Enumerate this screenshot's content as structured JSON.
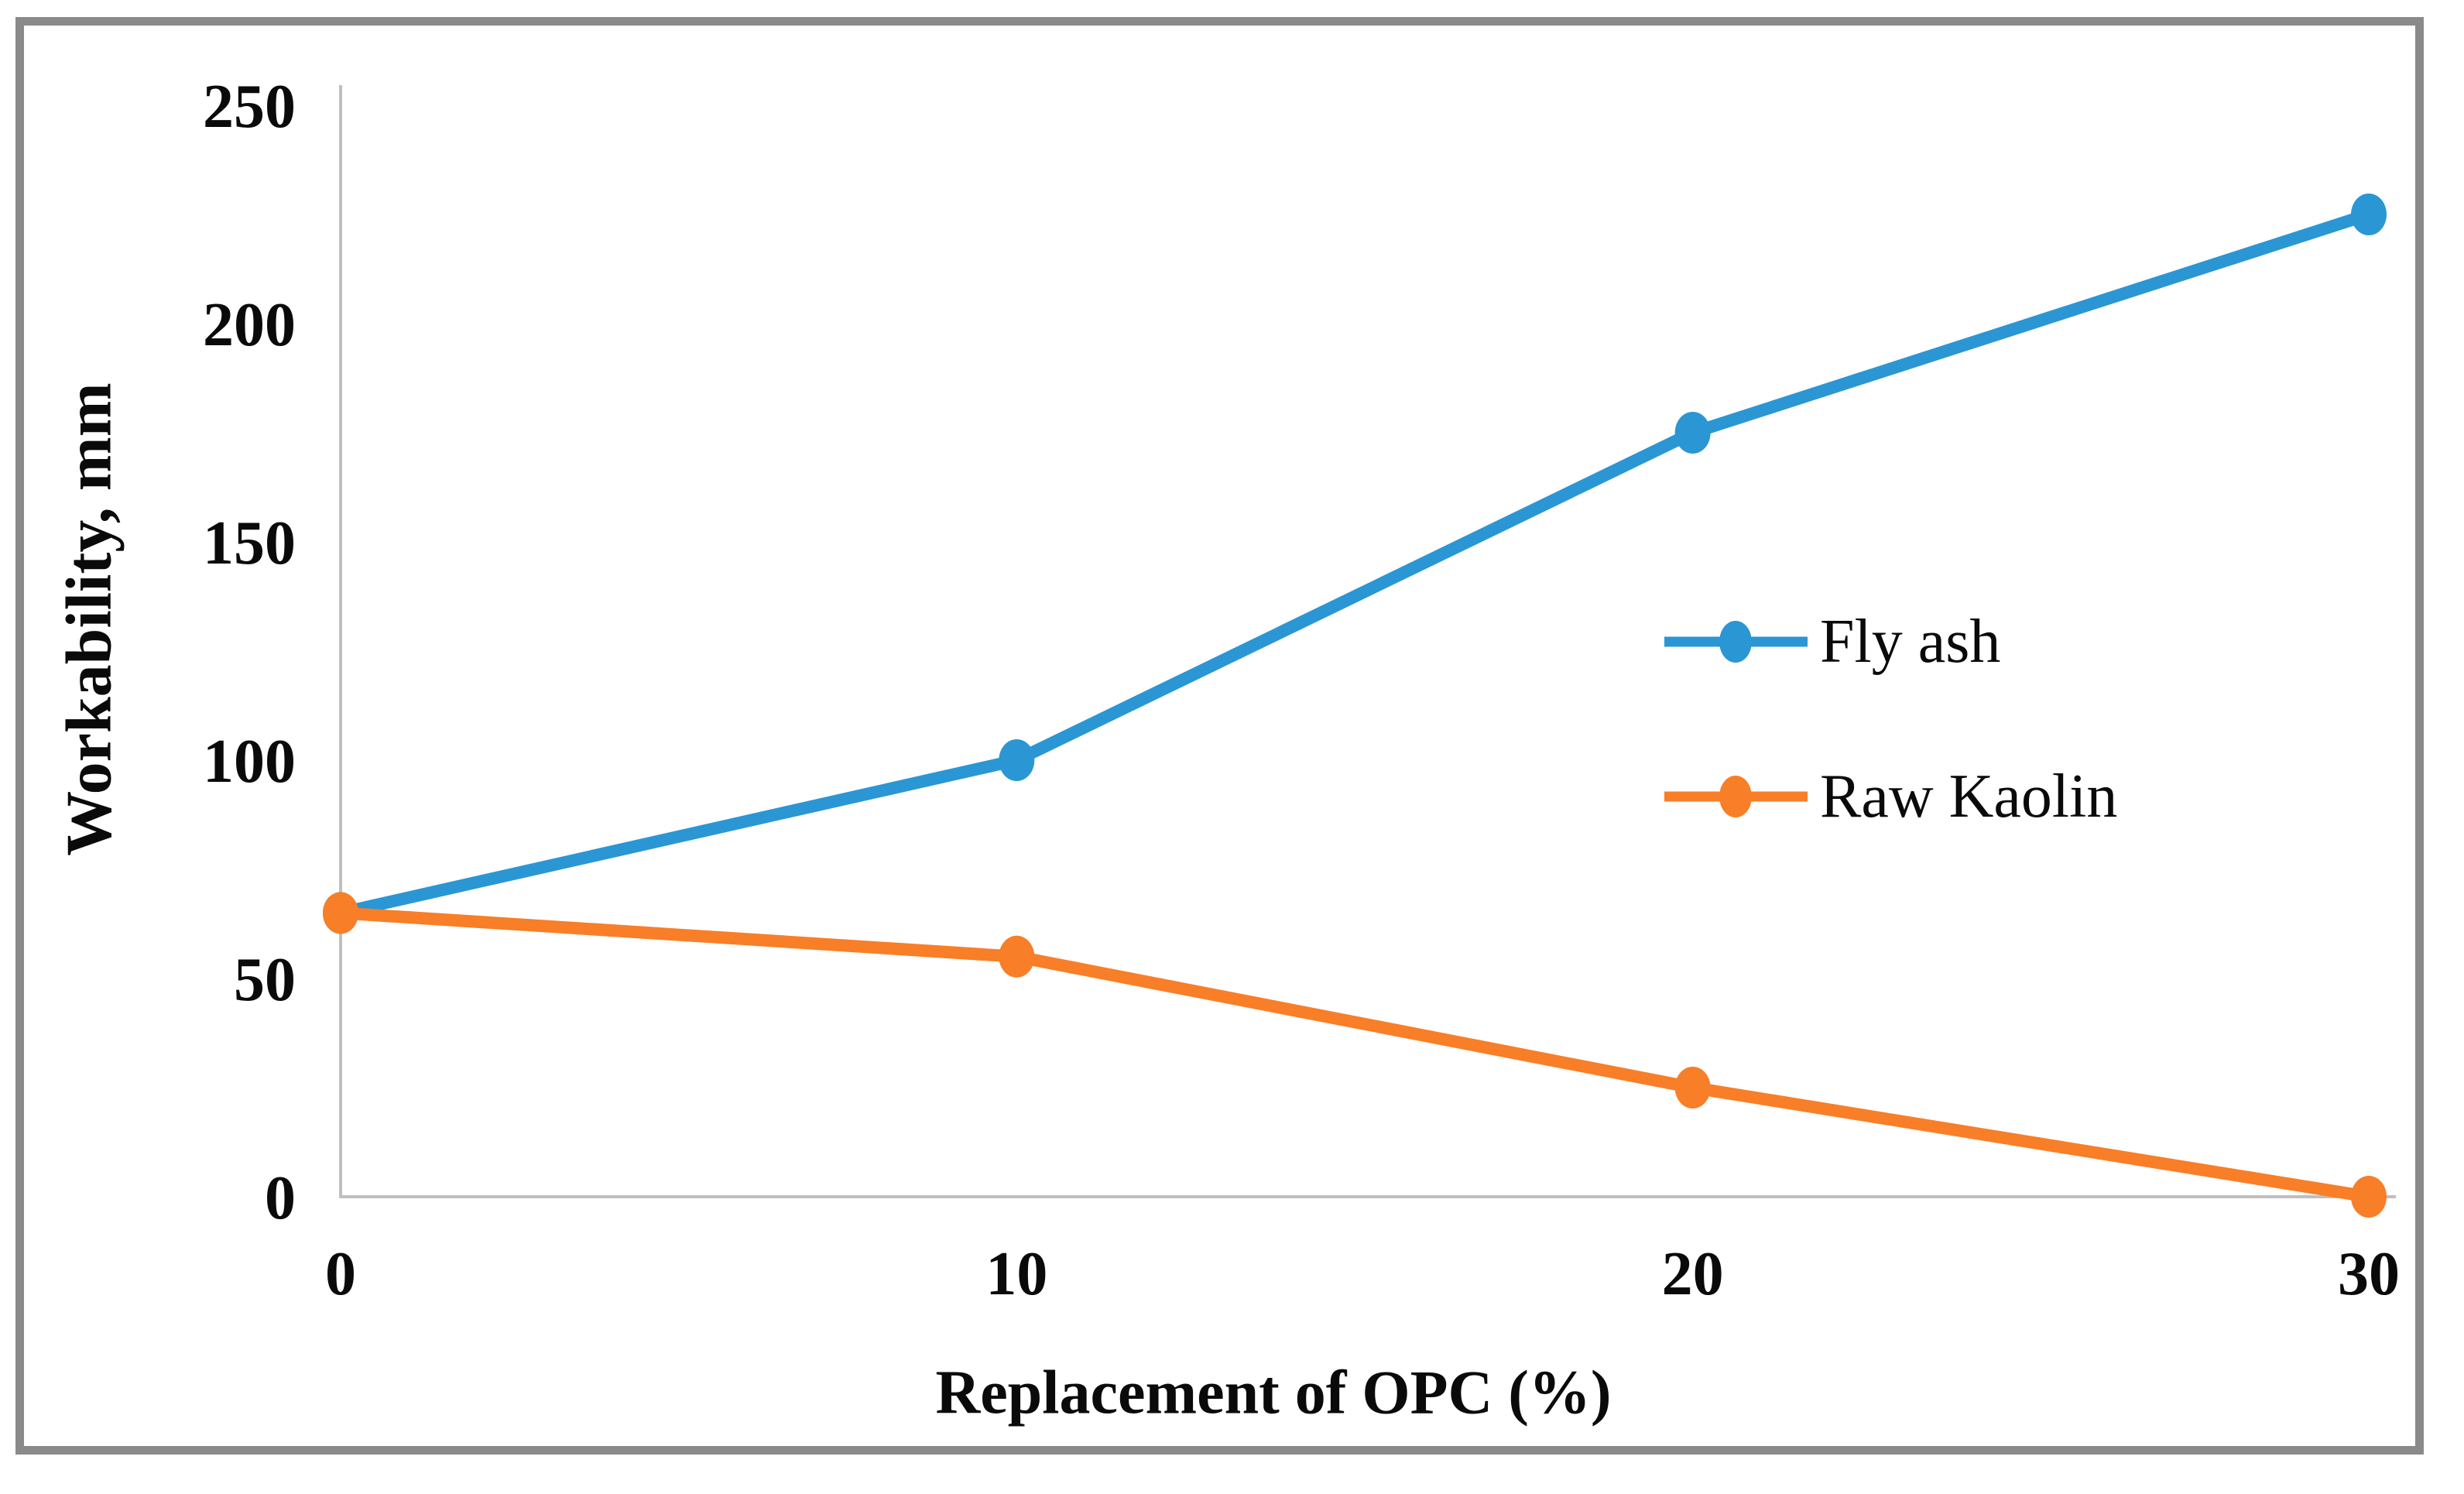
{
  "chart_data": {
    "type": "line",
    "title": "",
    "xlabel": "Replacement of OPC (%)",
    "ylabel": "Workability, mm",
    "x": [
      0,
      10,
      20,
      30
    ],
    "xticks": [
      0,
      10,
      20,
      30
    ],
    "yticks": [
      0,
      50,
      100,
      150,
      200,
      250
    ],
    "xlim": [
      0,
      30
    ],
    "ylim": [
      0,
      250
    ],
    "grid": false,
    "legend_position": "center-right-inside",
    "series": [
      {
        "name": "Fly ash",
        "color": "#2B96D4",
        "values": [
          65,
          100,
          175,
          225
        ]
      },
      {
        "name": "Raw Kaolin",
        "color": "#F87E28",
        "values": [
          65,
          55,
          25,
          0
        ]
      }
    ]
  },
  "styles": {
    "axis_line_color": "#BFBFBF",
    "frame_border_color": "#8a8a8a",
    "background": "#ffffff",
    "text_color": "#0a0a0a"
  }
}
